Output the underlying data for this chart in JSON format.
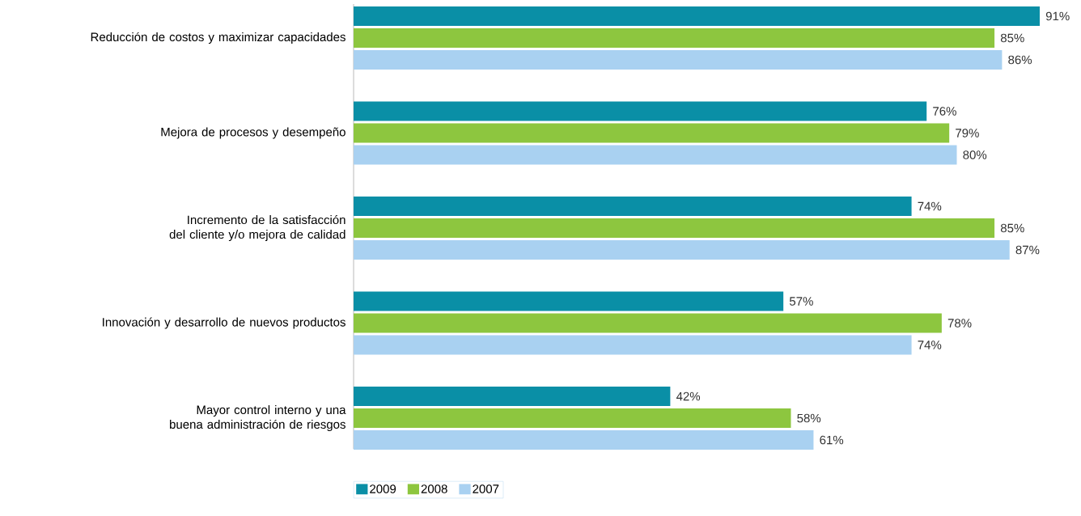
{
  "chart_data": {
    "type": "bar",
    "orientation": "horizontal",
    "legend": "bottom",
    "categories": [
      "Reducción de costos y maximizar capacidades",
      "Mejora de procesos y desempeño",
      "Incremento de la satisfacción del cliente y/o mejora de calidad",
      "Innovación y desarrollo de nuevos productos",
      "Mayor control interno y una buena administración de riesgos"
    ],
    "series": [
      {
        "name": "2009",
        "color": "#0a8fa6",
        "values": [
          91,
          76,
          74,
          57,
          42
        ],
        "value_labels": [
          "91%",
          "76%",
          "74%",
          "57%",
          "42%"
        ]
      },
      {
        "name": "2008",
        "color": "#8dc63f",
        "values": [
          85,
          79,
          85,
          78,
          58
        ],
        "value_labels": [
          "85%",
          "79%",
          "85%",
          "78%",
          "58%"
        ]
      },
      {
        "name": "2007",
        "color": "#a9d1f1",
        "values": [
          86,
          80,
          87,
          74,
          61
        ],
        "value_labels": [
          "86%",
          "80%",
          "87%",
          "74%",
          "61%"
        ]
      }
    ]
  }
}
